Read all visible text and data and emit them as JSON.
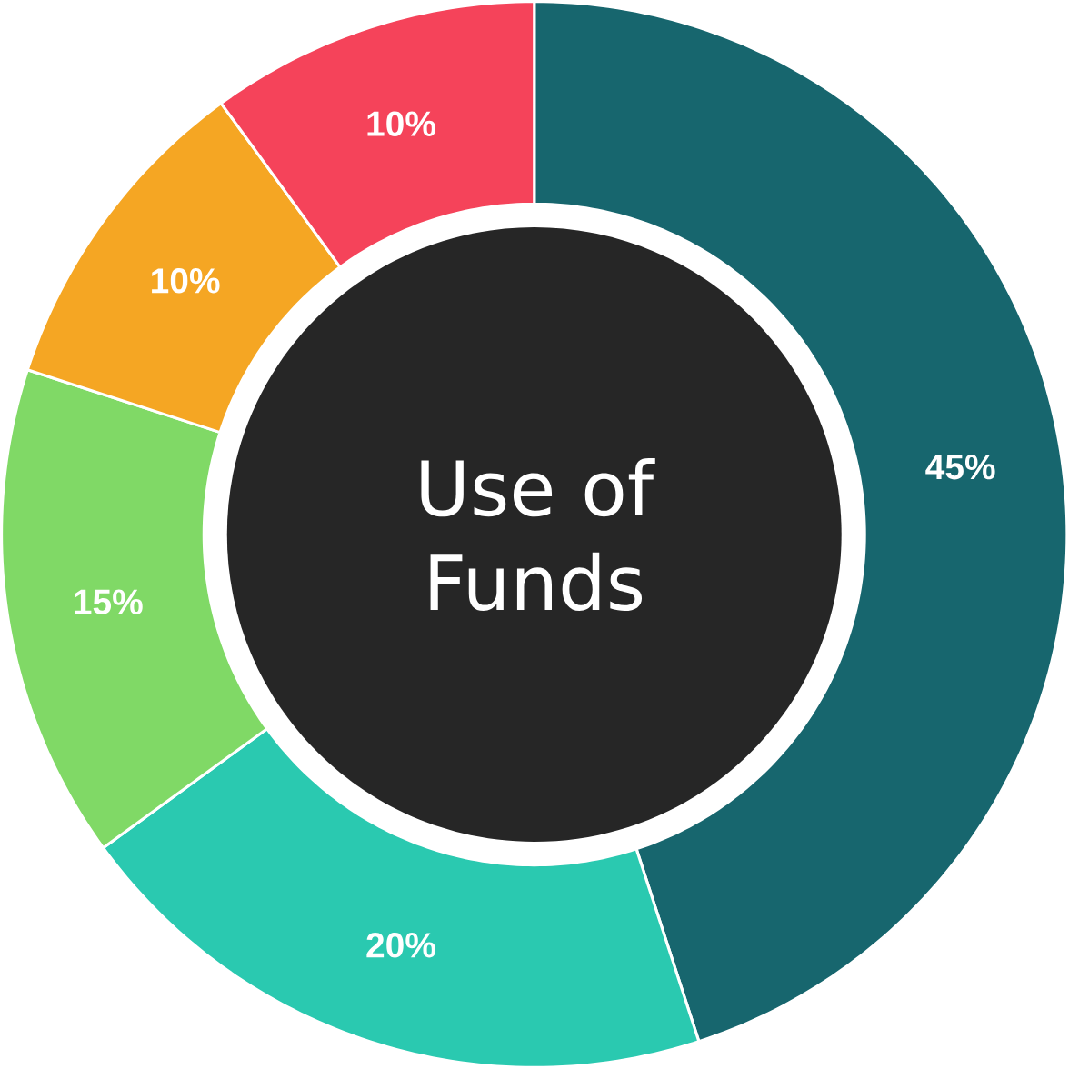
{
  "chart_data": {
    "type": "donut",
    "title": "Use of Funds",
    "categories": [
      null,
      null,
      null,
      null,
      null
    ],
    "values": [
      45,
      20,
      15,
      10,
      10
    ],
    "colors": [
      "#17666e",
      "#2ac9b0",
      "#80d966",
      "#f5a623",
      "#f5435a"
    ],
    "value_labels": [
      "45%",
      "20%",
      "15%",
      "10%",
      "10%"
    ],
    "legend": false
  }
}
